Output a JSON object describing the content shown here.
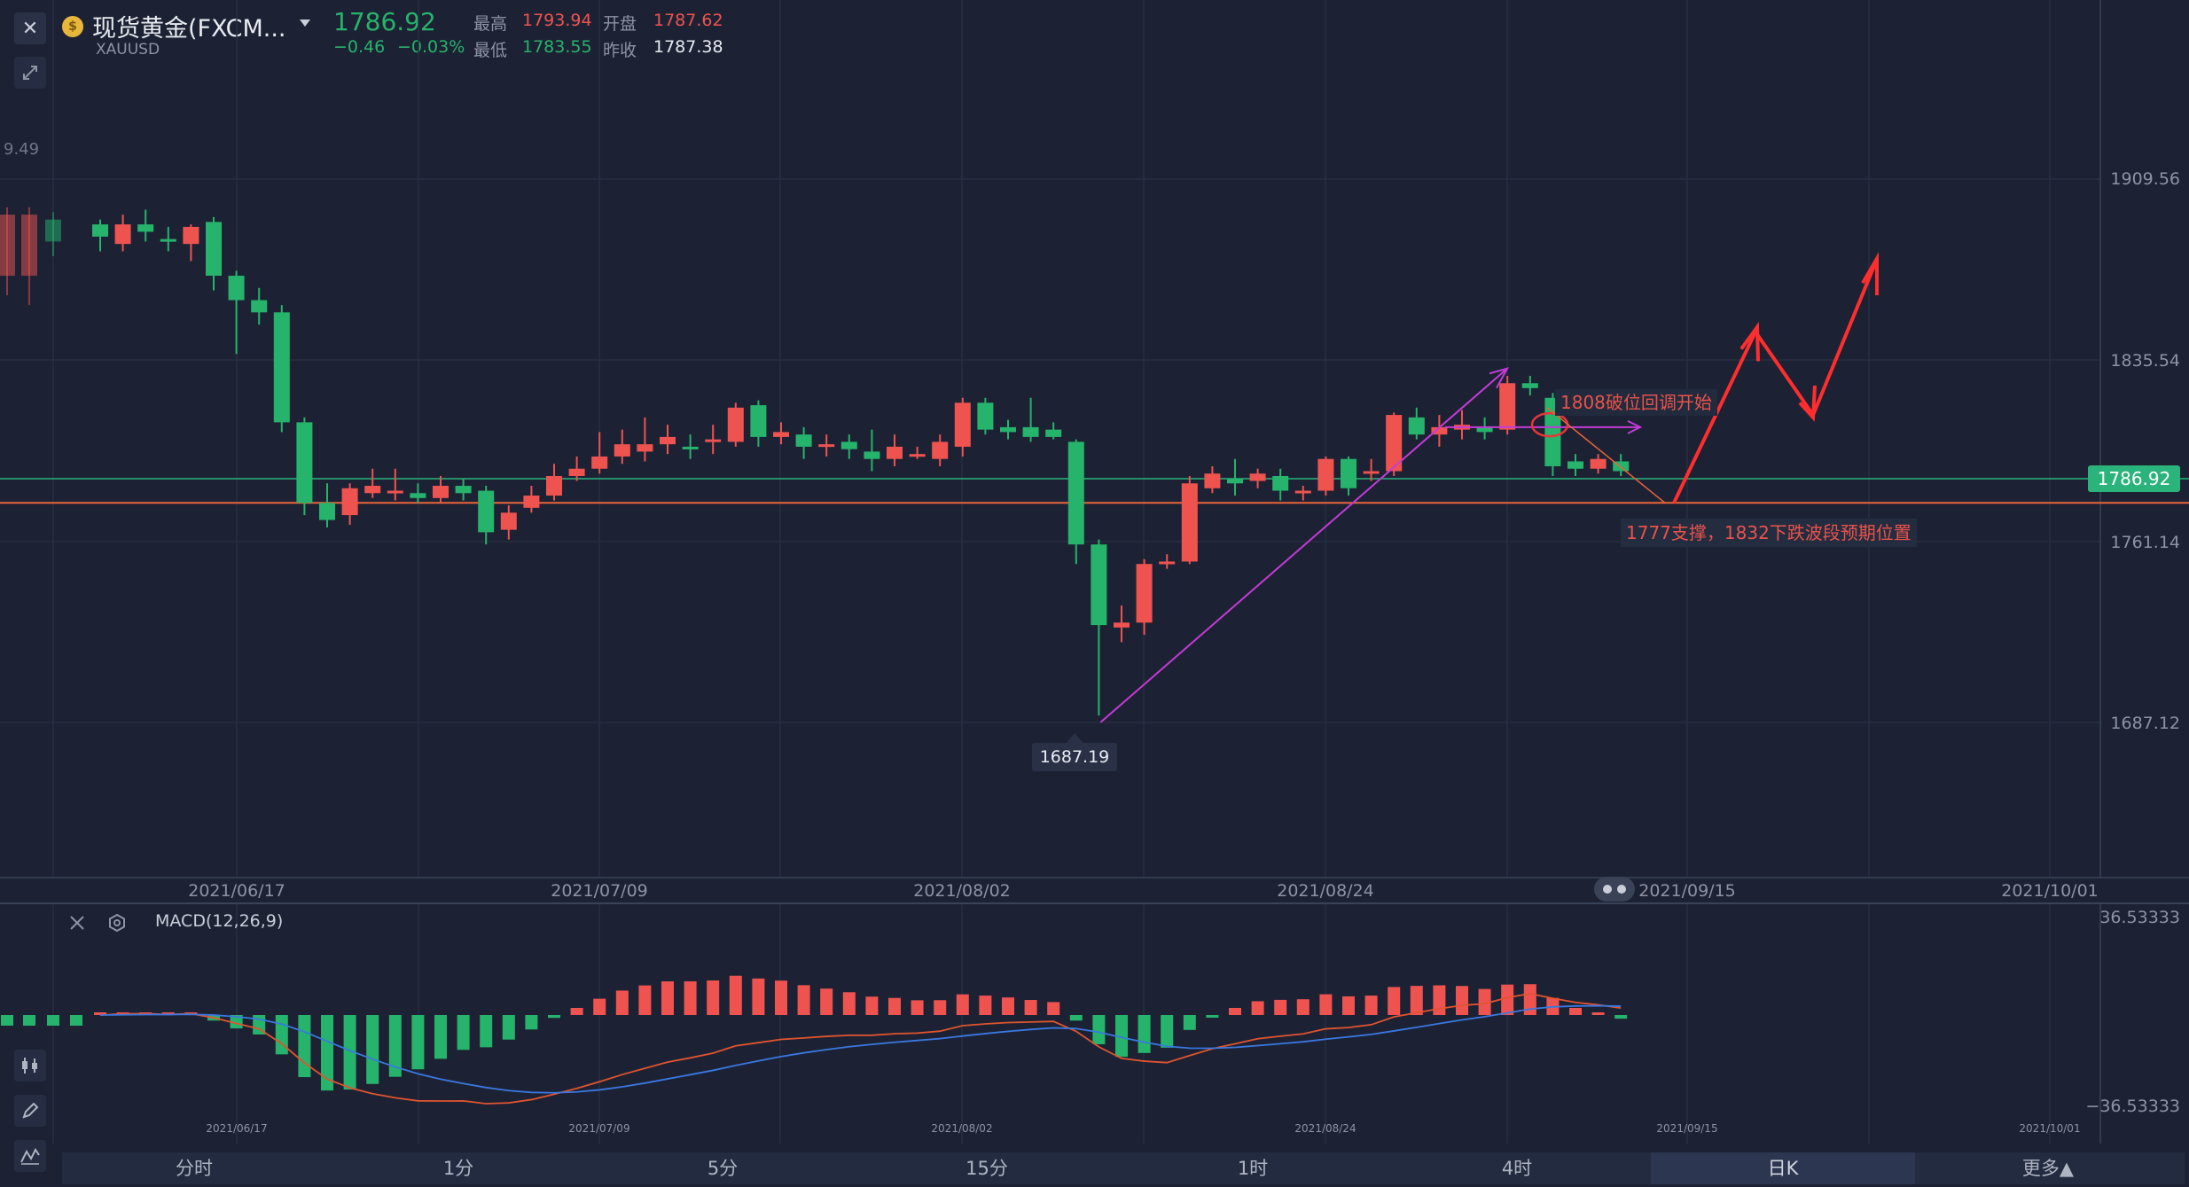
{
  "header": {
    "close_label": "✕",
    "symbol_name": "现货黄金(FXCM...",
    "symbol_code": "XAUUSD",
    "last_price": "1786.92",
    "change": "−0.46",
    "change_pct": "−0.03%",
    "high_label": "最高",
    "high_value": "1793.94",
    "open_label": "开盘",
    "open_value": "1787.62",
    "low_label": "最低",
    "low_value": "1783.55",
    "prev_label": "昨收",
    "prev_value": "1787.38"
  },
  "colors": {
    "up": "#ef5350",
    "down": "#26b36b",
    "accent": "#2ab37a",
    "background": "#1c2234"
  },
  "main_chart": {
    "partial_label": "9.49",
    "price_axis": [
      "1909.56",
      "1835.54",
      "1761.14",
      "1687.12"
    ],
    "current_price_tag": "1786.92",
    "low_marker": "1687.19",
    "dates": [
      "2021/06/17",
      "2021/07/09",
      "2021/08/02",
      "2021/08/24",
      "2021/09/15",
      "2021/10/01"
    ],
    "annotation_break": "1808破位回调开始",
    "annotation_support": "1777支撑，1832下跌波段预期位置"
  },
  "macd": {
    "title": "MACD(12,26,9)",
    "max": "36.53333",
    "min": "−36.53333",
    "dates": [
      "2021/06/17",
      "2021/07/09",
      "2021/08/02",
      "2021/08/24",
      "2021/09/15",
      "2021/10/01"
    ]
  },
  "tabs": [
    "分时",
    "1分",
    "5分",
    "15分",
    "1时",
    "4时",
    "日K",
    "更多▲"
  ],
  "active_tab": "日K",
  "left_tools": [
    "expand-icon",
    "candles-icon",
    "pencil-icon",
    "indicator-icon"
  ],
  "chart_data": {
    "type": "candlestick",
    "symbol": "XAUUSD",
    "visible_range": {
      "from": "2021/06/17",
      "to": "2021/10/01"
    },
    "y_ticks": [
      1909.56,
      1835.54,
      1761.14,
      1687.12
    ],
    "last_price": 1786.92,
    "marked_low": 1687.19,
    "support_level": 1777,
    "candles": [
      {
        "o": 1891,
        "c": 1886,
        "h": 1893,
        "l": 1880
      },
      {
        "o": 1883,
        "c": 1891,
        "h": 1895,
        "l": 1880
      },
      {
        "o": 1891,
        "c": 1888,
        "h": 1897,
        "l": 1884
      },
      {
        "o": 1885,
        "c": 1884,
        "h": 1890,
        "l": 1880
      },
      {
        "o": 1883,
        "c": 1890,
        "h": 1891,
        "l": 1876
      },
      {
        "o": 1892,
        "c": 1870,
        "h": 1894,
        "l": 1864
      },
      {
        "o": 1870,
        "c": 1860,
        "h": 1872,
        "l": 1838
      },
      {
        "o": 1860,
        "c": 1855,
        "h": 1865,
        "l": 1850
      },
      {
        "o": 1855,
        "c": 1810,
        "h": 1858,
        "l": 1806
      },
      {
        "o": 1810,
        "c": 1777,
        "h": 1812,
        "l": 1772
      },
      {
        "o": 1777,
        "c": 1770,
        "h": 1785,
        "l": 1767
      },
      {
        "o": 1772,
        "c": 1783,
        "h": 1785,
        "l": 1768
      },
      {
        "o": 1781,
        "c": 1784,
        "h": 1791,
        "l": 1779
      },
      {
        "o": 1781,
        "c": 1782,
        "h": 1791,
        "l": 1778
      },
      {
        "o": 1781,
        "c": 1779,
        "h": 1785,
        "l": 1777
      },
      {
        "o": 1779,
        "c": 1784,
        "h": 1788,
        "l": 1777
      },
      {
        "o": 1784,
        "c": 1781,
        "h": 1787,
        "l": 1778
      },
      {
        "o": 1782,
        "c": 1765,
        "h": 1784,
        "l": 1760
      },
      {
        "o": 1766,
        "c": 1773,
        "h": 1776,
        "l": 1762
      },
      {
        "o": 1775,
        "c": 1780,
        "h": 1784,
        "l": 1773
      },
      {
        "o": 1780,
        "c": 1788,
        "h": 1793,
        "l": 1778
      },
      {
        "o": 1788,
        "c": 1791,
        "h": 1796,
        "l": 1786
      },
      {
        "o": 1791,
        "c": 1796,
        "h": 1806,
        "l": 1789
      },
      {
        "o": 1796,
        "c": 1801,
        "h": 1807,
        "l": 1793
      },
      {
        "o": 1798,
        "c": 1801,
        "h": 1812,
        "l": 1794
      },
      {
        "o": 1801,
        "c": 1804,
        "h": 1809,
        "l": 1797
      },
      {
        "o": 1800,
        "c": 1799,
        "h": 1805,
        "l": 1795
      },
      {
        "o": 1802,
        "c": 1803,
        "h": 1809,
        "l": 1797
      },
      {
        "o": 1802,
        "c": 1816,
        "h": 1818,
        "l": 1800
      },
      {
        "o": 1817,
        "c": 1804,
        "h": 1819,
        "l": 1800
      },
      {
        "o": 1804,
        "c": 1806,
        "h": 1810,
        "l": 1801
      },
      {
        "o": 1805,
        "c": 1800,
        "h": 1808,
        "l": 1795
      },
      {
        "o": 1800,
        "c": 1801,
        "h": 1805,
        "l": 1796
      },
      {
        "o": 1802,
        "c": 1799,
        "h": 1805,
        "l": 1795
      },
      {
        "o": 1798,
        "c": 1795,
        "h": 1807,
        "l": 1790
      },
      {
        "o": 1795,
        "c": 1800,
        "h": 1805,
        "l": 1792
      },
      {
        "o": 1797,
        "c": 1797,
        "h": 1800,
        "l": 1795
      },
      {
        "o": 1795,
        "c": 1802,
        "h": 1805,
        "l": 1792
      },
      {
        "o": 1800,
        "c": 1818,
        "h": 1820,
        "l": 1796
      },
      {
        "o": 1818,
        "c": 1807,
        "h": 1820,
        "l": 1805
      },
      {
        "o": 1808,
        "c": 1806,
        "h": 1811,
        "l": 1803
      },
      {
        "o": 1808,
        "c": 1804,
        "h": 1820,
        "l": 1802
      },
      {
        "o": 1807,
        "c": 1804,
        "h": 1810,
        "l": 1803
      },
      {
        "o": 1802,
        "c": 1760,
        "h": 1803,
        "l": 1752
      },
      {
        "o": 1760,
        "c": 1727,
        "h": 1762,
        "l": 1690
      },
      {
        "o": 1726,
        "c": 1728,
        "h": 1735,
        "l": 1720
      },
      {
        "o": 1728,
        "c": 1752,
        "h": 1754,
        "l": 1723
      },
      {
        "o": 1752,
        "c": 1753,
        "h": 1756,
        "l": 1750
      },
      {
        "o": 1753,
        "c": 1785,
        "h": 1788,
        "l": 1752
      },
      {
        "o": 1783,
        "c": 1789,
        "h": 1792,
        "l": 1781
      },
      {
        "o": 1787,
        "c": 1785,
        "h": 1795,
        "l": 1780
      },
      {
        "o": 1786,
        "c": 1789,
        "h": 1791,
        "l": 1783
      },
      {
        "o": 1788,
        "c": 1782,
        "h": 1791,
        "l": 1778
      },
      {
        "o": 1781,
        "c": 1782,
        "h": 1784,
        "l": 1778
      },
      {
        "o": 1782,
        "c": 1795,
        "h": 1796,
        "l": 1780
      },
      {
        "o": 1795,
        "c": 1783,
        "h": 1796,
        "l": 1780
      },
      {
        "o": 1789,
        "c": 1790,
        "h": 1795,
        "l": 1786
      },
      {
        "o": 1790,
        "c": 1813,
        "h": 1814,
        "l": 1788
      },
      {
        "o": 1812,
        "c": 1805,
        "h": 1816,
        "l": 1803
      },
      {
        "o": 1805,
        "c": 1808,
        "h": 1813,
        "l": 1800
      },
      {
        "o": 1807,
        "c": 1809,
        "h": 1815,
        "l": 1803
      },
      {
        "o": 1808,
        "c": 1806,
        "h": 1812,
        "l": 1803
      },
      {
        "o": 1807,
        "c": 1826,
        "h": 1829,
        "l": 1805
      },
      {
        "o": 1826,
        "c": 1824,
        "h": 1829,
        "l": 1821
      },
      {
        "o": 1820,
        "c": 1792,
        "h": 1822,
        "l": 1788
      },
      {
        "o": 1794,
        "c": 1791,
        "h": 1797,
        "l": 1788
      },
      {
        "o": 1791,
        "c": 1795,
        "h": 1797,
        "l": 1789
      },
      {
        "o": 1794,
        "c": 1790,
        "h": 1797,
        "l": 1788
      }
    ],
    "macd": {
      "params": "12,26,9",
      "ylim": [
        -36.53333,
        36.53333
      ]
    }
  }
}
